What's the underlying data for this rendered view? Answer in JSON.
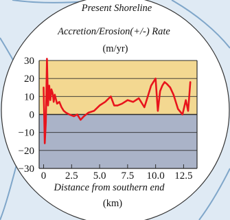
{
  "chart_data": {
    "type": "line",
    "title": "Present Shoreline",
    "subtitle": "Accretion/Erosion(+/-) Rate",
    "ylabel": "(m/yr)",
    "xlabel": "Distance from southern end",
    "xunit": "(km)",
    "xlim": [
      -0.4,
      13.7
    ],
    "ylim": [
      -30,
      30
    ],
    "xticks": [
      "0",
      "2.5",
      "5.0",
      "7.5",
      "10.0",
      "12.5"
    ],
    "yticks": [
      "30",
      "20",
      "10",
      "0",
      "−10",
      "−20",
      "−30"
    ],
    "grid": true,
    "series": [
      {
        "x": [
          0.0,
          0.1,
          0.2,
          0.3,
          0.4,
          0.5,
          0.6,
          0.7,
          0.8,
          0.9,
          1.0,
          1.2,
          1.4,
          1.6,
          1.8,
          2.0,
          2.3,
          2.7,
          3.0,
          3.3,
          3.6,
          4.0,
          4.5,
          5.0,
          5.5,
          6.0,
          6.3,
          6.6,
          7.0,
          7.5,
          8.0,
          8.5,
          9.0,
          9.2,
          9.6,
          10.0,
          10.2,
          10.4,
          10.6,
          10.8,
          11.0,
          11.3,
          11.6,
          12.0,
          12.4,
          12.7,
          12.9,
          13.1
        ],
        "y": [
          15,
          -16,
          -4,
          31,
          5,
          16,
          8,
          14,
          12,
          7,
          11,
          6,
          7,
          4,
          2,
          1,
          0,
          -1,
          0,
          -3,
          -1,
          1,
          2,
          5,
          7,
          10,
          5,
          5,
          6,
          8,
          7,
          9,
          4,
          8,
          16,
          20,
          2,
          13,
          16,
          18,
          17,
          15,
          11,
          3,
          0,
          8,
          2,
          18
        ],
        "color": "#e8141c"
      }
    ],
    "colors": {
      "positive_band": "#f3d891",
      "negative_band": "#aab3c8",
      "gridline": "#2a2a2a",
      "zero_line": "#2a2a2a",
      "map_water": "#dfeaf4",
      "map_outline": "#7fa6c9",
      "panel": "#ffffff"
    }
  }
}
